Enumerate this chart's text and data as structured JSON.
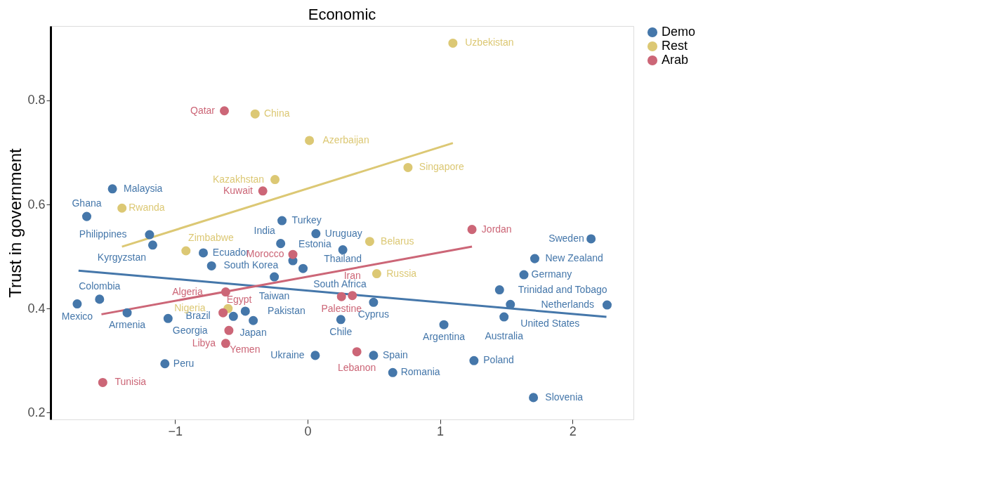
{
  "chart_data": {
    "type": "scatter",
    "title": "Economic",
    "ylabel": "Trust in government",
    "xlim": [
      -1.94,
      2.46
    ],
    "ylim": [
      0.187,
      0.943
    ],
    "xticks": [
      -1,
      0,
      1,
      2
    ],
    "yticks": [
      0.2,
      0.4,
      0.6,
      0.8
    ],
    "grid": false,
    "legend": "right",
    "series": [
      {
        "name": "Demo",
        "color": "#4577aa",
        "marker": "circle",
        "x": [
          -1.473,
          -1.667,
          -1.193,
          -1.169,
          -0.787,
          -0.725,
          -1.57,
          -1.739,
          -1.362,
          -1.053,
          -1.077,
          -0.193,
          0.063,
          -0.203,
          0.266,
          -0.111,
          -0.034,
          -0.251,
          0.498,
          -0.47,
          -0.56,
          -0.41,
          0.251,
          0.058,
          0.498,
          0.643,
          2.14,
          1.715,
          1.633,
          1.449,
          1.531,
          2.261,
          1.483,
          1.029,
          1.256,
          1.705
        ],
        "values": [
          0.63,
          0.577,
          0.542,
          0.522,
          0.507,
          0.482,
          0.418,
          0.409,
          0.392,
          0.381,
          0.294,
          0.569,
          0.544,
          0.525,
          0.513,
          0.492,
          0.477,
          0.461,
          0.412,
          0.395,
          0.385,
          0.377,
          0.379,
          0.31,
          0.31,
          0.277,
          0.534,
          0.496,
          0.465,
          0.436,
          0.408,
          0.407,
          0.384,
          0.369,
          0.3,
          0.229
        ]
      },
      {
        "name": "Rest",
        "color": "#dcc874",
        "marker": "circle",
        "x": [
          1.097,
          -0.396,
          0.014,
          0.758,
          -0.246,
          -1.401,
          -0.918,
          0.469,
          0.522,
          -0.6
        ],
        "values": [
          0.91,
          0.774,
          0.723,
          0.671,
          0.648,
          0.593,
          0.511,
          0.529,
          0.467,
          0.4
        ]
      },
      {
        "name": "Arab",
        "color": "#cc6677",
        "marker": "circle",
        "x": [
          -0.628,
          -0.338,
          1.241,
          -0.111,
          -0.618,
          0.256,
          0.338,
          0.372,
          -1.546,
          -0.638,
          -0.594,
          -0.618
        ],
        "values": [
          0.78,
          0.626,
          0.552,
          0.504,
          0.432,
          0.423,
          0.425,
          0.317,
          0.258,
          0.392,
          0.358,
          0.333
        ]
      },
      {
        "color": "#4577aa",
        "type": "line",
        "marker": "none",
        "x": [
          -1.729,
          2.256
        ],
        "values": [
          0.473,
          0.384
        ]
      },
      {
        "color": "#dcc874",
        "type": "line",
        "marker": "none",
        "x": [
          -1.401,
          1.097
        ],
        "values": [
          0.519,
          0.718
        ]
      },
      {
        "color": "#cc6677",
        "type": "line",
        "marker": "none",
        "x": [
          -1.556,
          1.241
        ],
        "values": [
          0.389,
          0.519
        ]
      }
    ],
    "annotations": [
      {
        "text": "Malaysia",
        "x": -1.473,
        "y": 0.63
      },
      {
        "text": "Ghana",
        "x": -1.667,
        "y": 0.577
      },
      {
        "text": "Philippines",
        "x": -1.193,
        "y": 0.542
      },
      {
        "text": "Kyrgyzstan",
        "x": -1.169,
        "y": 0.522
      },
      {
        "text": "Ecuador",
        "x": -0.787,
        "y": 0.507
      },
      {
        "text": "South Korea",
        "x": -0.725,
        "y": 0.482
      },
      {
        "text": "Colombia",
        "x": -1.57,
        "y": 0.418
      },
      {
        "text": "Mexico",
        "x": -1.739,
        "y": 0.409
      },
      {
        "text": "Armenia",
        "x": -1.362,
        "y": 0.392
      },
      {
        "text": "Georgia",
        "x": -1.053,
        "y": 0.381
      },
      {
        "text": "Peru",
        "x": -1.077,
        "y": 0.294
      },
      {
        "text": "Turkey",
        "x": -0.193,
        "y": 0.569
      },
      {
        "text": "Uruguay",
        "x": 0.063,
        "y": 0.544
      },
      {
        "text": "India",
        "x": -0.203,
        "y": 0.525
      },
      {
        "text": "Thailand",
        "x": 0.266,
        "y": 0.513
      },
      {
        "text": "Estonia",
        "x": -0.111,
        "y": 0.492
      },
      {
        "text": "South Africa",
        "x": -0.034,
        "y": 0.477
      },
      {
        "text": "Taiwan",
        "x": -0.251,
        "y": 0.461
      },
      {
        "text": "Cyprus",
        "x": 0.498,
        "y": 0.412
      },
      {
        "text": "Pakistan",
        "x": -0.47,
        "y": 0.395
      },
      {
        "text": "Brazil",
        "x": -0.56,
        "y": 0.385
      },
      {
        "text": "Japan",
        "x": -0.41,
        "y": 0.377
      },
      {
        "text": "Chile",
        "x": 0.251,
        "y": 0.379
      },
      {
        "text": "Ukraine",
        "x": 0.058,
        "y": 0.31
      },
      {
        "text": "Spain",
        "x": 0.498,
        "y": 0.31
      },
      {
        "text": "Romania",
        "x": 0.643,
        "y": 0.277
      },
      {
        "text": "Sweden",
        "x": 2.14,
        "y": 0.534
      },
      {
        "text": "New Zealand",
        "x": 1.715,
        "y": 0.496
      },
      {
        "text": "Germany",
        "x": 1.633,
        "y": 0.465
      },
      {
        "text": "Trinidad and Tobago",
        "x": 1.449,
        "y": 0.436
      },
      {
        "text": "United States",
        "x": 1.531,
        "y": 0.408
      },
      {
        "text": "Netherlands",
        "x": 2.261,
        "y": 0.407
      },
      {
        "text": "Australia",
        "x": 1.483,
        "y": 0.384
      },
      {
        "text": "Argentina",
        "x": 1.029,
        "y": 0.369
      },
      {
        "text": "Poland",
        "x": 1.256,
        "y": 0.3
      },
      {
        "text": "Slovenia",
        "x": 1.705,
        "y": 0.229
      },
      {
        "text": "Uzbekistan",
        "x": 1.097,
        "y": 0.91
      },
      {
        "text": "China",
        "x": -0.396,
        "y": 0.774
      },
      {
        "text": "Azerbaijan",
        "x": 0.014,
        "y": 0.723
      },
      {
        "text": "Singapore",
        "x": 0.758,
        "y": 0.671
      },
      {
        "text": "Kazakhstan",
        "x": -0.246,
        "y": 0.648
      },
      {
        "text": "Rwanda",
        "x": -1.401,
        "y": 0.593
      },
      {
        "text": "Zimbabwe",
        "x": -0.918,
        "y": 0.511
      },
      {
        "text": "Belarus",
        "x": 0.469,
        "y": 0.529
      },
      {
        "text": "Russia",
        "x": 0.522,
        "y": 0.467
      },
      {
        "text": "Nigeria",
        "x": -0.6,
        "y": 0.4
      },
      {
        "text": "Qatar",
        "x": -0.628,
        "y": 0.78
      },
      {
        "text": "Kuwait",
        "x": -0.338,
        "y": 0.626
      },
      {
        "text": "Jordan",
        "x": 1.241,
        "y": 0.552
      },
      {
        "text": "Morocco",
        "x": -0.111,
        "y": 0.504
      },
      {
        "text": "Algeria",
        "x": -0.618,
        "y": 0.432
      },
      {
        "text": "Palestine",
        "x": 0.256,
        "y": 0.423
      },
      {
        "text": "Iran",
        "x": 0.338,
        "y": 0.425
      },
      {
        "text": "Lebanon",
        "x": 0.372,
        "y": 0.317
      },
      {
        "text": "Tunisia",
        "x": -1.546,
        "y": 0.258
      },
      {
        "text": "Egypt",
        "x": -0.638,
        "y": 0.392
      },
      {
        "text": "Yemen",
        "x": -0.594,
        "y": 0.358
      },
      {
        "text": "Libya",
        "x": -0.618,
        "y": 0.333
      }
    ]
  }
}
